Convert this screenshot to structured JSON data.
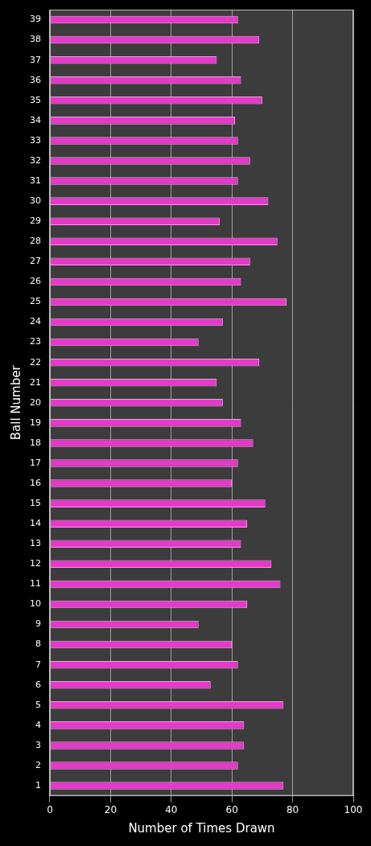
{
  "chart_data": {
    "type": "bar",
    "orientation": "horizontal",
    "x_label": "Number of Times Drawn",
    "y_label": "Ball Number",
    "categories": [
      "1",
      "2",
      "3",
      "4",
      "5",
      "6",
      "7",
      "8",
      "9",
      "10",
      "11",
      "12",
      "13",
      "14",
      "15",
      "16",
      "17",
      "18",
      "19",
      "20",
      "21",
      "22",
      "23",
      "24",
      "25",
      "26",
      "27",
      "28",
      "29",
      "30",
      "31",
      "32",
      "33",
      "34",
      "35",
      "36",
      "37",
      "38",
      "39"
    ],
    "values": [
      77,
      62,
      64,
      64,
      77,
      53,
      62,
      60,
      49,
      65,
      76,
      73,
      63,
      65,
      71,
      60,
      62,
      67,
      63,
      57,
      55,
      69,
      49,
      57,
      78,
      63,
      66,
      75,
      56,
      72,
      62,
      66,
      62,
      61,
      70,
      63,
      55,
      69,
      62
    ],
    "color": "#e33ac8",
    "xlim": [
      0,
      100
    ],
    "xticks": [
      0,
      20,
      40,
      60,
      80,
      100
    ],
    "grid": true
  }
}
